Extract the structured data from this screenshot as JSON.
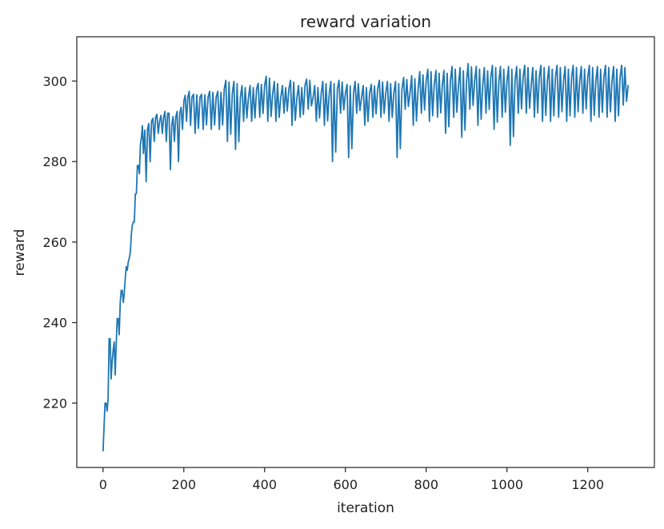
{
  "chart_data": {
    "type": "line",
    "title": "reward variation",
    "xlabel": "iteration",
    "ylabel": "reward",
    "xlim": [
      -65,
      1365
    ],
    "ylim": [
      204,
      311
    ],
    "x_ticks": [
      0,
      200,
      400,
      600,
      800,
      1000,
      1200
    ],
    "y_ticks": [
      220,
      240,
      260,
      280,
      300
    ],
    "grid": false,
    "line_color": "#1f77b4",
    "series": [
      {
        "x": [
          0,
          5,
          10,
          15,
          20,
          25,
          30,
          35,
          40,
          45,
          50,
          55,
          60,
          65,
          70,
          75,
          80,
          85,
          90,
          95,
          100,
          110,
          120,
          130,
          140,
          150,
          160,
          170,
          180,
          190,
          200,
          210,
          220,
          240,
          260,
          280,
          300,
          320,
          340,
          360,
          380,
          400,
          420,
          440,
          460,
          480,
          500,
          520,
          540,
          560,
          580,
          600,
          620,
          640,
          660,
          680,
          700,
          720,
          740,
          760,
          780,
          800,
          820,
          840,
          860,
          880,
          900,
          920,
          940,
          960,
          980,
          1000,
          1020,
          1040,
          1060,
          1080,
          1100,
          1120,
          1140,
          1160,
          1180,
          1200,
          1220,
          1240,
          1260,
          1280,
          1300
        ],
        "values": [
          208,
          220,
          218,
          236,
          226,
          233,
          227,
          241,
          237,
          248,
          245,
          251,
          253,
          256,
          262,
          265,
          272,
          279,
          277,
          286,
          282,
          288,
          290,
          291,
          290,
          291,
          292,
          289,
          291,
          292,
          295,
          296,
          296,
          296,
          296,
          296,
          298,
          297,
          296,
          296,
          298,
          299,
          297,
          296,
          298,
          296,
          299,
          296,
          297,
          297,
          298,
          297,
          297,
          296,
          297,
          298,
          297,
          297,
          298,
          297,
          298,
          300,
          299,
          299,
          300,
          299,
          300,
          300,
          299,
          301,
          300,
          300,
          300,
          301,
          299,
          301,
          300,
          301,
          300,
          301,
          300,
          301,
          300,
          301,
          300,
          301,
          299
        ],
        "highs": [
          208,
          220,
          222,
          236,
          232,
          236,
          237,
          241,
          248,
          248,
          248,
          255,
          256,
          258,
          265,
          265,
          272,
          279,
          287,
          290,
          290,
          290,
          291,
          292,
          292,
          293,
          292,
          292,
          293,
          294,
          297,
          298,
          297,
          297,
          298,
          298,
          301,
          301,
          300,
          300,
          300,
          302,
          301,
          300,
          301,
          300,
          301,
          300,
          301,
          301,
          301,
          300,
          301,
          300,
          300,
          301,
          301,
          301,
          302,
          303,
          304,
          304,
          304,
          304,
          305,
          305,
          306,
          305,
          305,
          305,
          305,
          305,
          305,
          305,
          305,
          305,
          305,
          305,
          305,
          305,
          305,
          305,
          305,
          305,
          305,
          305,
          304
        ],
        "lows": [
          208,
          218,
          217,
          225,
          221,
          223,
          226,
          235,
          235,
          236,
          244,
          248,
          248,
          251,
          256,
          262,
          267,
          269,
          274,
          274,
          275,
          280,
          285,
          287,
          287,
          285,
          278,
          285,
          280,
          288,
          290,
          289,
          287,
          288,
          288,
          288,
          285,
          283,
          290,
          290,
          291,
          290,
          290,
          292,
          289,
          291,
          293,
          290,
          289,
          280,
          292,
          281,
          292,
          289,
          291,
          291,
          290,
          281,
          293,
          289,
          292,
          290,
          291,
          287,
          291,
          286,
          293,
          289,
          292,
          288,
          291,
          284,
          292,
          292,
          291,
          290,
          290,
          291,
          290,
          291,
          292,
          290,
          291,
          291,
          290,
          294,
          293
        ]
      }
    ]
  }
}
